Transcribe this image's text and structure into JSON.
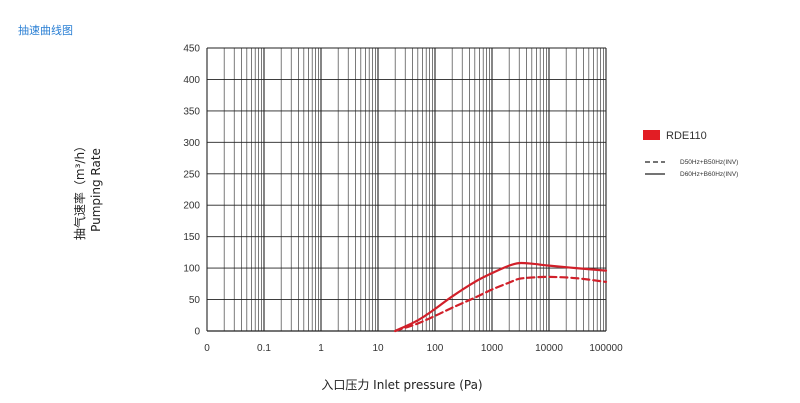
{
  "page": {
    "title": "抽速曲线图"
  },
  "chart_data": {
    "type": "line",
    "xscale": "log",
    "x_range": [
      0.01,
      100000
    ],
    "x_ticks": [
      "0",
      "0.1",
      "1",
      "10",
      "100",
      "1000",
      "10000",
      "100000"
    ],
    "xlabel": "入口压力 Inlet pressure (Pa)",
    "ylabel": [
      "抽气速率（m³/h）",
      "Pumping Rate"
    ],
    "ylim": [
      0,
      450
    ],
    "y_ticks": [
      "0",
      "50",
      "100",
      "150",
      "200",
      "250",
      "300",
      "350",
      "400",
      "450"
    ],
    "grid": true,
    "legend_position": "right",
    "legend": {
      "model": {
        "label": "RDE110",
        "color": "#e21d24"
      },
      "dashed_label": "D50Hz+B50Hz(INV)",
      "solid_label": "D60Hz+B60Hz(INV)"
    },
    "series": [
      {
        "name": "D60Hz+B60Hz(INV)",
        "style": "solid",
        "color": "#d1202a",
        "points": [
          [
            20,
            0
          ],
          [
            50,
            17
          ],
          [
            100,
            35
          ],
          [
            200,
            55
          ],
          [
            500,
            78
          ],
          [
            1000,
            92
          ],
          [
            2000,
            104
          ],
          [
            3000,
            108
          ],
          [
            5000,
            107
          ],
          [
            10000,
            104
          ],
          [
            30000,
            100
          ],
          [
            100000,
            96
          ]
        ]
      },
      {
        "name": "D50Hz+B50Hz(INV)",
        "style": "dashed",
        "color": "#d1202a",
        "points": [
          [
            20,
            0
          ],
          [
            50,
            12
          ],
          [
            100,
            24
          ],
          [
            200,
            37
          ],
          [
            500,
            53
          ],
          [
            1000,
            66
          ],
          [
            2000,
            77
          ],
          [
            3000,
            83
          ],
          [
            5000,
            85
          ],
          [
            10000,
            86
          ],
          [
            30000,
            84
          ],
          [
            100000,
            78
          ]
        ]
      }
    ]
  }
}
